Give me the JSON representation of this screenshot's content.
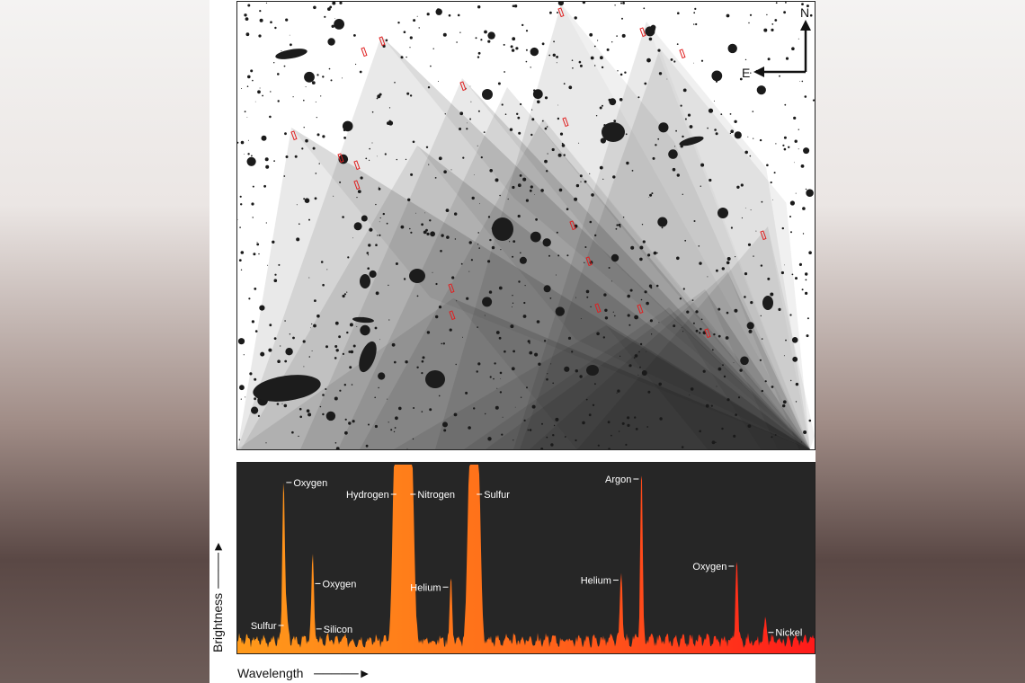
{
  "compass": {
    "north": "N",
    "east": "E"
  },
  "axis": {
    "x_label": "Wavelength",
    "y_label": "Brightness"
  },
  "colors": {
    "spectrum_start": "#ff9a1a",
    "spectrum_end": "#ff1a1a",
    "panel_bg": "#262626"
  },
  "chart_data": {
    "type": "line",
    "title": "",
    "xlabel": "Wavelength",
    "ylabel": "Brightness",
    "grid": false,
    "legend": "none",
    "lines": [
      {
        "label": "Sulfur",
        "x": 0.085,
        "peak": 0.16
      },
      {
        "label": "Oxygen",
        "x": 0.08,
        "peak": 0.98
      },
      {
        "label": "Oxygen",
        "x": 0.13,
        "peak": 0.4
      },
      {
        "label": "Silicon",
        "x": 0.132,
        "peak": 0.14
      },
      {
        "label": "Hydrogen",
        "x": 0.28,
        "peak": 1.05
      },
      {
        "label": "Nitrogen",
        "x": 0.295,
        "peak": 1.05
      },
      {
        "label": "Helium",
        "x": 0.37,
        "peak": 0.38
      },
      {
        "label": "Sulfur",
        "x": 0.41,
        "peak": 1.05
      },
      {
        "label": "Argon",
        "x": 0.7,
        "peak": 1.0
      },
      {
        "label": "Helium",
        "x": 0.665,
        "peak": 0.42
      },
      {
        "label": "Oxygen",
        "x": 0.865,
        "peak": 0.5
      },
      {
        "label": "Nickel",
        "x": 0.915,
        "peak": 0.12
      }
    ]
  }
}
